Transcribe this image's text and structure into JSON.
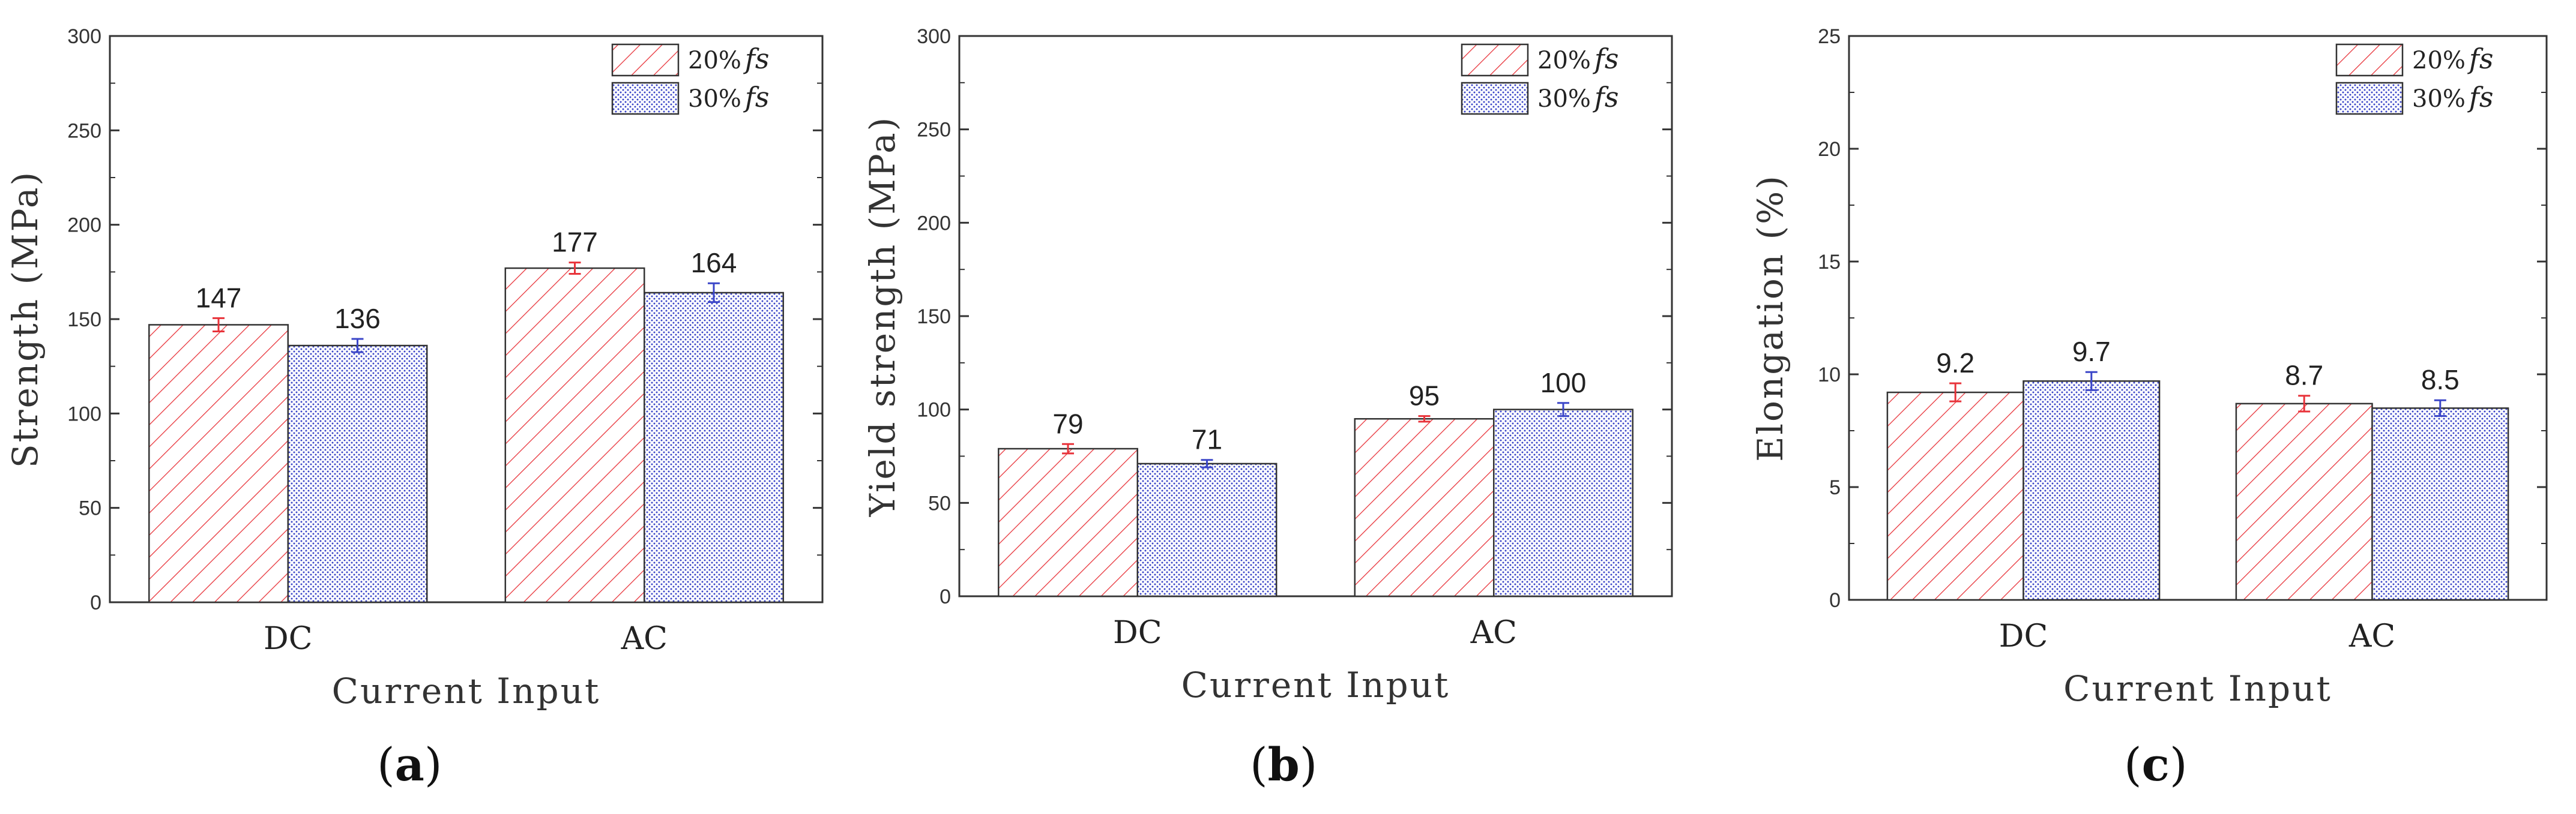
{
  "chart_data": [
    {
      "type": "bar",
      "caption": "a",
      "categories": [
        "DC",
        "AC"
      ],
      "xlabel": "Current Input",
      "ylabel": "Strength (MPa)",
      "ylim": [
        0,
        300
      ],
      "yticks": [
        0,
        50,
        100,
        150,
        200,
        250,
        300
      ],
      "legend_position": "top-right",
      "series": [
        {
          "name": "20%",
          "name_suffix": "fs",
          "pattern": "hatch",
          "color": "#e8333a",
          "values": [
            147,
            177
          ],
          "errors": [
            3.5,
            3
          ],
          "labels": [
            "147",
            "177"
          ]
        },
        {
          "name": "30%",
          "name_suffix": "fs",
          "pattern": "dots",
          "color": "#3b46c8",
          "values": [
            136,
            164
          ],
          "errors": [
            3.5,
            5
          ],
          "labels": [
            "136",
            "164"
          ]
        }
      ]
    },
    {
      "type": "bar",
      "caption": "b",
      "categories": [
        "DC",
        "AC"
      ],
      "xlabel": "Current Input",
      "ylabel": "Yield strength (MPa)",
      "ylim": [
        0,
        300
      ],
      "yticks": [
        0,
        50,
        100,
        150,
        200,
        250,
        300
      ],
      "legend_position": "top-right",
      "series": [
        {
          "name": "20%",
          "name_suffix": "fs",
          "pattern": "hatch",
          "color": "#e8333a",
          "values": [
            79,
            95
          ],
          "errors": [
            2.5,
            1.5
          ],
          "labels": [
            "79",
            "95"
          ]
        },
        {
          "name": "30%",
          "name_suffix": "fs",
          "pattern": "dots",
          "color": "#3b46c8",
          "values": [
            71,
            100
          ],
          "errors": [
            2,
            3.5
          ],
          "labels": [
            "71",
            "100"
          ]
        }
      ]
    },
    {
      "type": "bar",
      "caption": "c",
      "categories": [
        "DC",
        "AC"
      ],
      "xlabel": "Current Input",
      "ylabel": "Elongation (%)",
      "ylim": [
        0,
        25
      ],
      "yticks": [
        0,
        5,
        10,
        15,
        20,
        25
      ],
      "legend_position": "top-right",
      "series": [
        {
          "name": "20%",
          "name_suffix": "fs",
          "pattern": "hatch",
          "color": "#e8333a",
          "values": [
            9.2,
            8.7
          ],
          "errors": [
            0.4,
            0.35
          ],
          "labels": [
            "9.2",
            "8.7"
          ]
        },
        {
          "name": "30%",
          "name_suffix": "fs",
          "pattern": "dots",
          "color": "#3b46c8",
          "values": [
            9.7,
            8.5
          ],
          "errors": [
            0.4,
            0.35
          ],
          "labels": [
            "9.7",
            "8.5"
          ]
        }
      ]
    }
  ]
}
